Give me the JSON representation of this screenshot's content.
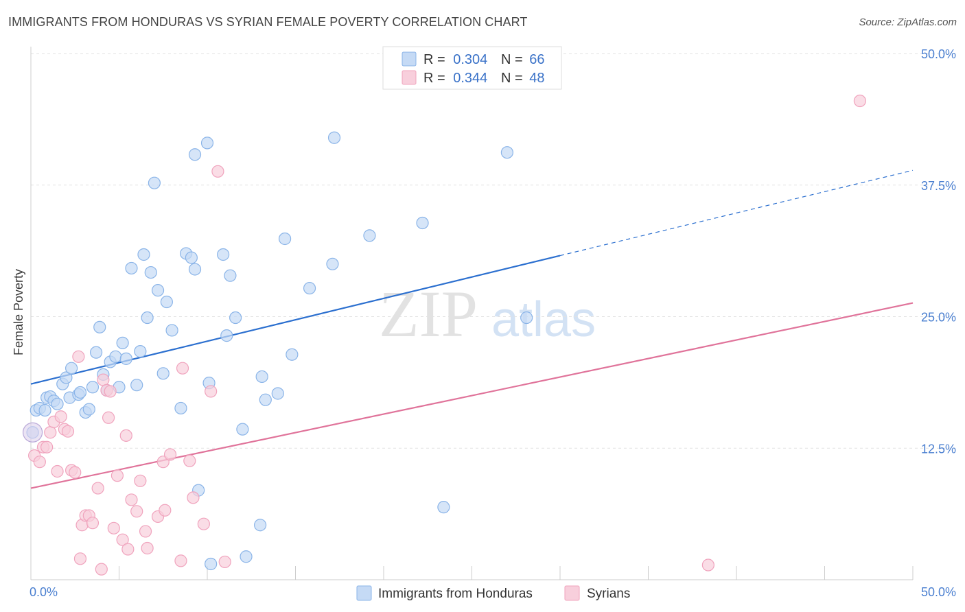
{
  "title": "IMMIGRANTS FROM HONDURAS VS SYRIAN FEMALE POVERTY CORRELATION CHART",
  "source": "Source: ZipAtlas.com",
  "watermark": {
    "zip": "ZIP",
    "atlas": "atlas"
  },
  "chart_data": {
    "type": "scatter",
    "ylabel": "Female Poverty",
    "xlim": [
      0,
      50
    ],
    "ylim": [
      0,
      50
    ],
    "x_tick_labels": [
      "0.0%",
      "50.0%"
    ],
    "y_tick_values": [
      12.5,
      25.0,
      37.5,
      50.0
    ],
    "y_tick_labels": [
      "12.5%",
      "25.0%",
      "37.5%",
      "50.0%"
    ],
    "grid": true,
    "legend": [
      {
        "r_label": "R = ",
        "r_value": "0.304",
        "n_label": "N = ",
        "n_value": "66"
      },
      {
        "r_label": "R = ",
        "r_value": "0.344",
        "n_label": "N = ",
        "n_value": "48"
      }
    ],
    "series": [
      {
        "name": "Immigrants from Honduras",
        "color": "#8ab4e8",
        "fill": "#c5daf5",
        "line_color": "#2b6fcf",
        "trend": {
          "x0": 0,
          "y0": 18.6,
          "x1": 30,
          "y1": 30.8,
          "dash_x1": 50,
          "dash_y1": 38.9
        },
        "points": [
          [
            0.3,
            16.1
          ],
          [
            0.5,
            16.3
          ],
          [
            0.8,
            16.1
          ],
          [
            0.9,
            17.3
          ],
          [
            1.1,
            17.4
          ],
          [
            1.3,
            17.0
          ],
          [
            1.5,
            16.7
          ],
          [
            1.8,
            18.6
          ],
          [
            2.0,
            19.2
          ],
          [
            2.3,
            20.1
          ],
          [
            2.2,
            17.3
          ],
          [
            2.7,
            17.6
          ],
          [
            2.8,
            17.8
          ],
          [
            3.1,
            15.9
          ],
          [
            3.3,
            16.2
          ],
          [
            3.5,
            18.3
          ],
          [
            3.7,
            21.6
          ],
          [
            3.9,
            24.0
          ],
          [
            4.1,
            19.5
          ],
          [
            4.3,
            18.0
          ],
          [
            4.5,
            20.7
          ],
          [
            4.8,
            21.2
          ],
          [
            5.0,
            18.3
          ],
          [
            5.2,
            22.5
          ],
          [
            5.4,
            21.0
          ],
          [
            5.7,
            29.6
          ],
          [
            6.0,
            18.5
          ],
          [
            6.2,
            21.7
          ],
          [
            6.4,
            30.9
          ],
          [
            6.6,
            24.9
          ],
          [
            6.8,
            29.2
          ],
          [
            7.0,
            37.7
          ],
          [
            7.2,
            27.5
          ],
          [
            7.5,
            19.6
          ],
          [
            7.7,
            26.4
          ],
          [
            8.0,
            23.7
          ],
          [
            8.5,
            16.3
          ],
          [
            8.8,
            31.0
          ],
          [
            9.1,
            30.6
          ],
          [
            9.3,
            29.5
          ],
          [
            9.3,
            40.4
          ],
          [
            9.5,
            8.5
          ],
          [
            10.0,
            41.5
          ],
          [
            10.1,
            18.7
          ],
          [
            10.2,
            1.5
          ],
          [
            10.9,
            30.9
          ],
          [
            11.1,
            23.2
          ],
          [
            11.3,
            28.9
          ],
          [
            11.6,
            24.9
          ],
          [
            12.0,
            14.3
          ],
          [
            12.2,
            2.2
          ],
          [
            13.0,
            5.2
          ],
          [
            13.1,
            19.3
          ],
          [
            13.3,
            17.1
          ],
          [
            14.0,
            17.7
          ],
          [
            14.4,
            32.4
          ],
          [
            14.8,
            21.4
          ],
          [
            15.8,
            27.7
          ],
          [
            17.1,
            30.0
          ],
          [
            17.2,
            42.0
          ],
          [
            19.2,
            32.7
          ],
          [
            22.2,
            33.9
          ],
          [
            23.4,
            6.9
          ],
          [
            27.0,
            40.6
          ],
          [
            28.1,
            24.9
          ],
          [
            0.1,
            14.0
          ]
        ]
      },
      {
        "name": "Syrians",
        "color": "#f0a3bd",
        "fill": "#f8cfdc",
        "line_color": "#e0739a",
        "trend": {
          "x0": 0,
          "y0": 8.7,
          "x1": 50,
          "y1": 26.3
        },
        "points": [
          [
            0.2,
            11.8
          ],
          [
            0.5,
            11.2
          ],
          [
            0.7,
            12.6
          ],
          [
            0.9,
            12.6
          ],
          [
            1.1,
            14.0
          ],
          [
            1.3,
            15.0
          ],
          [
            1.5,
            10.3
          ],
          [
            1.7,
            15.5
          ],
          [
            1.9,
            14.3
          ],
          [
            2.1,
            14.1
          ],
          [
            2.3,
            10.4
          ],
          [
            2.5,
            10.2
          ],
          [
            2.7,
            21.2
          ],
          [
            2.8,
            2.0
          ],
          [
            2.9,
            5.2
          ],
          [
            3.1,
            6.1
          ],
          [
            3.3,
            6.1
          ],
          [
            3.5,
            5.4
          ],
          [
            3.8,
            8.7
          ],
          [
            4.0,
            1.0
          ],
          [
            4.1,
            19.0
          ],
          [
            4.3,
            18.0
          ],
          [
            4.4,
            15.4
          ],
          [
            4.5,
            17.9
          ],
          [
            4.7,
            4.9
          ],
          [
            4.9,
            9.9
          ],
          [
            5.2,
            3.8
          ],
          [
            5.4,
            13.7
          ],
          [
            5.5,
            2.9
          ],
          [
            5.7,
            7.6
          ],
          [
            6.0,
            6.5
          ],
          [
            6.2,
            9.4
          ],
          [
            6.5,
            4.6
          ],
          [
            6.6,
            3.0
          ],
          [
            7.2,
            6.0
          ],
          [
            7.5,
            11.2
          ],
          [
            7.6,
            6.6
          ],
          [
            7.9,
            11.9
          ],
          [
            8.5,
            1.8
          ],
          [
            8.6,
            20.1
          ],
          [
            9.0,
            11.3
          ],
          [
            9.2,
            7.8
          ],
          [
            9.8,
            5.3
          ],
          [
            10.2,
            17.9
          ],
          [
            10.6,
            38.8
          ],
          [
            11.0,
            1.7
          ],
          [
            38.4,
            1.4
          ],
          [
            47.0,
            45.5
          ]
        ]
      }
    ]
  }
}
